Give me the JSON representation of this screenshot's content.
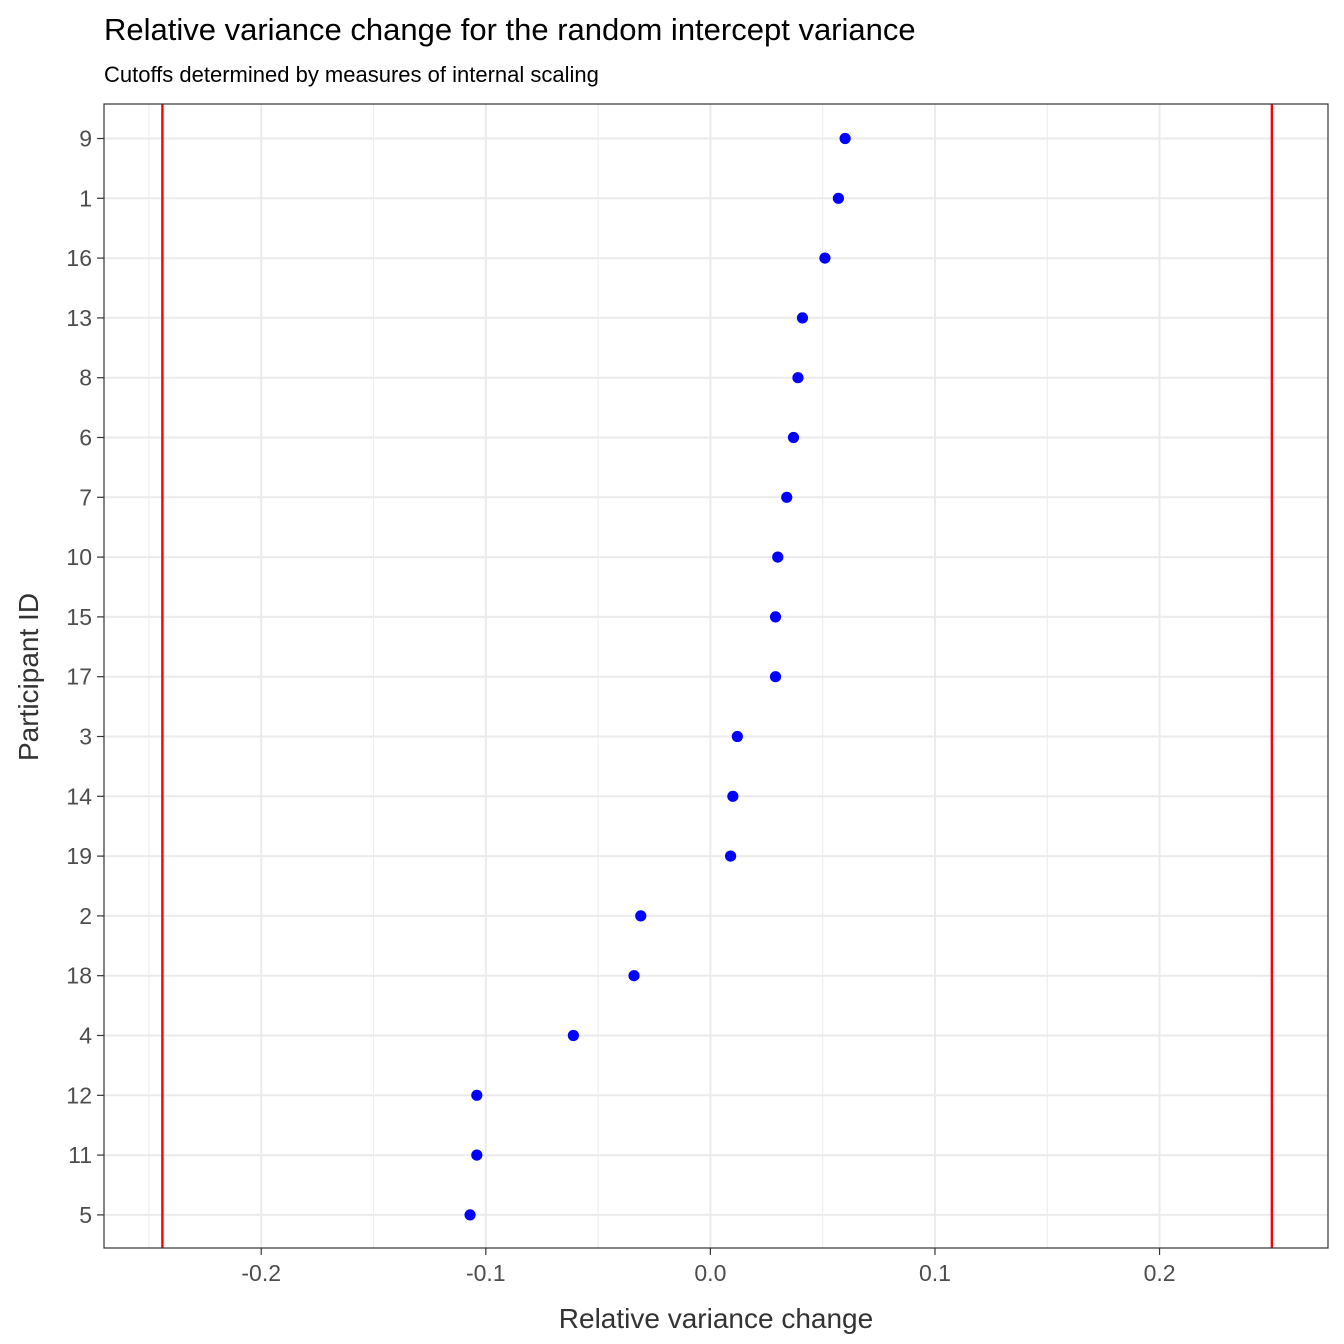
{
  "chart_data": {
    "type": "scatter",
    "title": "Relative variance change for the random intercept variance",
    "subtitle": "Cutoffs determined by measures of internal scaling",
    "xlabel": "Relative variance change",
    "ylabel": "Participant ID",
    "xlim": [
      -0.27,
      0.275
    ],
    "x_ticks": [
      "-0.2",
      "-0.1",
      "0.0",
      "0.1",
      "0.2"
    ],
    "grid": true,
    "point_color": "#0000ff",
    "cutoff_color": "#ff0000",
    "cutoffs": [
      -0.244,
      0.25
    ],
    "categories": [
      "9",
      "1",
      "16",
      "13",
      "8",
      "6",
      "7",
      "10",
      "15",
      "17",
      "3",
      "14",
      "19",
      "2",
      "18",
      "4",
      "12",
      "11",
      "5"
    ],
    "values": [
      0.06,
      0.057,
      0.051,
      0.041,
      0.039,
      0.037,
      0.034,
      0.03,
      0.029,
      0.029,
      0.012,
      0.01,
      0.009,
      -0.031,
      -0.034,
      -0.061,
      -0.104,
      -0.104,
      -0.107
    ]
  }
}
